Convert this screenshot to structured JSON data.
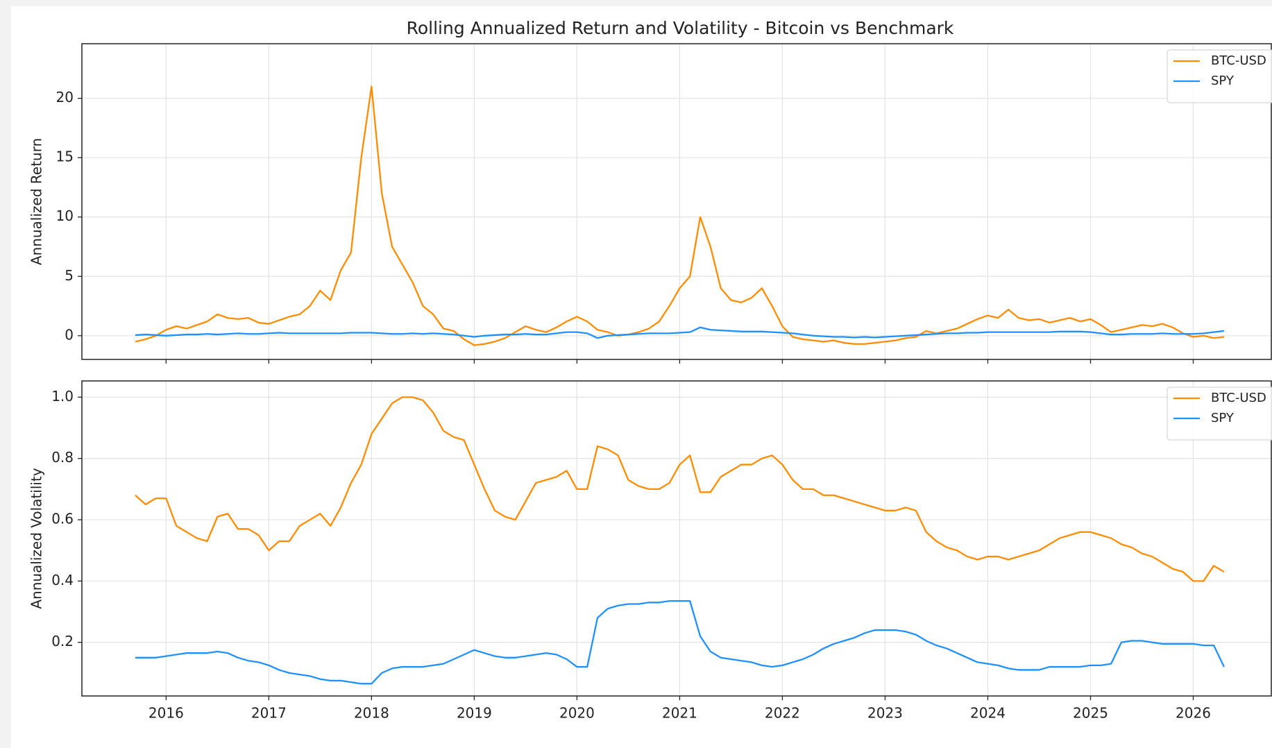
{
  "chart_data": [
    {
      "type": "line",
      "title": "Rolling Annualized Return and Volatility - Bitcoin vs Benchmark",
      "ylabel": "Annualized Return",
      "x": [
        2015.7,
        2015.8,
        2015.9,
        2016,
        2016.1,
        2016.2,
        2016.3,
        2016.4,
        2016.5,
        2016.6,
        2016.7,
        2016.8,
        2016.9,
        2017,
        2017.1,
        2017.2,
        2017.3,
        2017.4,
        2017.5,
        2017.6,
        2017.7,
        2017.8,
        2017.9,
        2018,
        2018.1,
        2018.2,
        2018.3,
        2018.4,
        2018.5,
        2018.6,
        2018.7,
        2018.8,
        2018.9,
        2019,
        2019.1,
        2019.2,
        2019.3,
        2019.4,
        2019.5,
        2019.6,
        2019.7,
        2019.8,
        2019.9,
        2020,
        2020.1,
        2020.2,
        2020.3,
        2020.4,
        2020.5,
        2020.6,
        2020.7,
        2020.8,
        2020.9,
        2021,
        2021.1,
        2021.2,
        2021.3,
        2021.4,
        2021.5,
        2021.6,
        2021.7,
        2021.8,
        2021.9,
        2022,
        2022.1,
        2022.2,
        2022.3,
        2022.4,
        2022.5,
        2022.6,
        2022.7,
        2022.8,
        2022.9,
        2023,
        2023.1,
        2023.2,
        2023.3,
        2023.4,
        2023.5,
        2023.6,
        2023.7,
        2023.8,
        2023.9,
        2024,
        2024.1,
        2024.2,
        2024.3,
        2024.4,
        2024.5,
        2024.6,
        2024.7,
        2024.8,
        2024.9,
        2025,
        2025.1,
        2025.2,
        2025.3,
        2025.4,
        2025.5,
        2025.6,
        2025.7,
        2025.8,
        2025.9,
        2026,
        2026.1,
        2026.2,
        2026.3
      ],
      "series": [
        {
          "name": "BTC-USD",
          "color": "#ff8c00",
          "values": [
            -0.5,
            -0.3,
            0.0,
            0.5,
            0.8,
            0.6,
            0.9,
            1.2,
            1.8,
            1.5,
            1.4,
            1.5,
            1.1,
            1.0,
            1.3,
            1.6,
            1.8,
            2.5,
            3.8,
            3.0,
            5.5,
            7.0,
            15.0,
            21.0,
            12.0,
            7.5,
            6.0,
            4.5,
            2.5,
            1.8,
            0.6,
            0.4,
            -0.3,
            -0.8,
            -0.7,
            -0.5,
            -0.2,
            0.3,
            0.8,
            0.5,
            0.3,
            0.7,
            1.2,
            1.6,
            1.2,
            0.5,
            0.3,
            0.0,
            0.1,
            0.3,
            0.6,
            1.2,
            2.5,
            4.0,
            5.0,
            10.0,
            7.5,
            4.0,
            3.0,
            2.8,
            3.2,
            4.0,
            2.5,
            0.8,
            -0.1,
            -0.3,
            -0.4,
            -0.5,
            -0.4,
            -0.6,
            -0.7,
            -0.7,
            -0.6,
            -0.5,
            -0.4,
            -0.2,
            -0.1,
            0.4,
            0.2,
            0.4,
            0.6,
            1.0,
            1.4,
            1.7,
            1.5,
            2.2,
            1.5,
            1.3,
            1.4,
            1.1,
            1.3,
            1.5,
            1.2,
            1.4,
            0.9,
            0.3,
            0.5,
            0.7,
            0.9,
            0.8,
            1.0,
            0.7,
            0.2,
            -0.1,
            0.0,
            -0.2,
            -0.1
          ]
        },
        {
          "name": "SPY",
          "color": "#1e90ff",
          "values": [
            0.05,
            0.1,
            0.05,
            0.0,
            0.05,
            0.1,
            0.1,
            0.15,
            0.1,
            0.15,
            0.2,
            0.15,
            0.15,
            0.2,
            0.25,
            0.2,
            0.2,
            0.2,
            0.2,
            0.2,
            0.2,
            0.25,
            0.25,
            0.25,
            0.2,
            0.15,
            0.15,
            0.2,
            0.15,
            0.2,
            0.15,
            0.1,
            0.0,
            -0.1,
            0.0,
            0.05,
            0.1,
            0.1,
            0.15,
            0.1,
            0.1,
            0.2,
            0.3,
            0.3,
            0.2,
            -0.2,
            0.0,
            0.05,
            0.1,
            0.15,
            0.2,
            0.2,
            0.2,
            0.25,
            0.3,
            0.7,
            0.5,
            0.45,
            0.4,
            0.35,
            0.35,
            0.35,
            0.3,
            0.25,
            0.2,
            0.1,
            0.0,
            -0.05,
            -0.1,
            -0.1,
            -0.15,
            -0.1,
            -0.15,
            -0.1,
            -0.05,
            0.0,
            0.05,
            0.1,
            0.15,
            0.2,
            0.2,
            0.25,
            0.25,
            0.3,
            0.3,
            0.3,
            0.3,
            0.3,
            0.3,
            0.3,
            0.35,
            0.35,
            0.35,
            0.3,
            0.2,
            0.1,
            0.1,
            0.15,
            0.15,
            0.15,
            0.2,
            0.15,
            0.15,
            0.15,
            0.2,
            0.3,
            0.4
          ]
        }
      ],
      "xlim": [
        2015.18,
        2026.76
      ],
      "xticks": [
        2016,
        2017,
        2018,
        2019,
        2020,
        2021,
        2022,
        2023,
        2024,
        2025,
        2026
      ],
      "ylim": [
        -2,
        24.6
      ],
      "yticks": [
        0,
        5,
        10,
        15,
        20
      ],
      "grid": true,
      "legend": "upper right"
    },
    {
      "type": "line",
      "ylabel": "Annualized Volatility",
      "x": [
        2015.7,
        2015.8,
        2015.9,
        2016,
        2016.1,
        2016.2,
        2016.3,
        2016.4,
        2016.5,
        2016.6,
        2016.7,
        2016.8,
        2016.9,
        2017,
        2017.1,
        2017.2,
        2017.3,
        2017.4,
        2017.5,
        2017.6,
        2017.7,
        2017.8,
        2017.9,
        2018,
        2018.1,
        2018.2,
        2018.3,
        2018.4,
        2018.5,
        2018.6,
        2018.7,
        2018.8,
        2018.9,
        2019,
        2019.1,
        2019.2,
        2019.3,
        2019.4,
        2019.5,
        2019.6,
        2019.7,
        2019.8,
        2019.9,
        2020,
        2020.1,
        2020.2,
        2020.3,
        2020.4,
        2020.5,
        2020.6,
        2020.7,
        2020.8,
        2020.9,
        2021,
        2021.1,
        2021.2,
        2021.3,
        2021.4,
        2021.5,
        2021.6,
        2021.7,
        2021.8,
        2021.9,
        2022,
        2022.1,
        2022.2,
        2022.3,
        2022.4,
        2022.5,
        2022.6,
        2022.7,
        2022.8,
        2022.9,
        2023,
        2023.1,
        2023.2,
        2023.3,
        2023.4,
        2023.5,
        2023.6,
        2023.7,
        2023.8,
        2023.9,
        2024,
        2024.1,
        2024.2,
        2024.3,
        2024.4,
        2024.5,
        2024.6,
        2024.7,
        2024.8,
        2024.9,
        2025,
        2025.1,
        2025.2,
        2025.3,
        2025.4,
        2025.5,
        2025.6,
        2025.7,
        2025.8,
        2025.9,
        2026,
        2026.1,
        2026.2,
        2026.3
      ],
      "series": [
        {
          "name": "BTC-USD",
          "color": "#ff8c00",
          "values": [
            0.68,
            0.65,
            0.67,
            0.67,
            0.58,
            0.56,
            0.54,
            0.53,
            0.61,
            0.62,
            0.57,
            0.57,
            0.55,
            0.5,
            0.53,
            0.53,
            0.58,
            0.6,
            0.62,
            0.58,
            0.64,
            0.72,
            0.78,
            0.88,
            0.93,
            0.98,
            1.0,
            1.0,
            0.99,
            0.95,
            0.89,
            0.87,
            0.86,
            0.78,
            0.7,
            0.63,
            0.61,
            0.6,
            0.66,
            0.72,
            0.73,
            0.74,
            0.76,
            0.7,
            0.7,
            0.84,
            0.83,
            0.81,
            0.73,
            0.71,
            0.7,
            0.7,
            0.72,
            0.78,
            0.81,
            0.69,
            0.69,
            0.74,
            0.76,
            0.78,
            0.78,
            0.8,
            0.81,
            0.78,
            0.73,
            0.7,
            0.7,
            0.68,
            0.68,
            0.67,
            0.66,
            0.65,
            0.64,
            0.63,
            0.63,
            0.64,
            0.63,
            0.56,
            0.53,
            0.51,
            0.5,
            0.48,
            0.47,
            0.48,
            0.48,
            0.47,
            0.48,
            0.49,
            0.5,
            0.52,
            0.54,
            0.55,
            0.56,
            0.56,
            0.55,
            0.54,
            0.52,
            0.51,
            0.49,
            0.48,
            0.46,
            0.44,
            0.43,
            0.4,
            0.4,
            0.45,
            0.43
          ]
        },
        {
          "name": "SPY",
          "color": "#1e90ff",
          "values": [
            0.15,
            0.15,
            0.15,
            0.155,
            0.16,
            0.165,
            0.165,
            0.165,
            0.17,
            0.165,
            0.15,
            0.14,
            0.135,
            0.125,
            0.11,
            0.1,
            0.095,
            0.09,
            0.08,
            0.075,
            0.075,
            0.07,
            0.065,
            0.065,
            0.1,
            0.115,
            0.12,
            0.12,
            0.12,
            0.125,
            0.13,
            0.145,
            0.16,
            0.175,
            0.165,
            0.155,
            0.15,
            0.15,
            0.155,
            0.16,
            0.165,
            0.16,
            0.145,
            0.12,
            0.12,
            0.28,
            0.31,
            0.32,
            0.325,
            0.325,
            0.33,
            0.33,
            0.335,
            0.335,
            0.335,
            0.22,
            0.17,
            0.15,
            0.145,
            0.14,
            0.135,
            0.125,
            0.12,
            0.125,
            0.135,
            0.145,
            0.16,
            0.18,
            0.195,
            0.205,
            0.215,
            0.23,
            0.24,
            0.24,
            0.24,
            0.235,
            0.225,
            0.205,
            0.19,
            0.18,
            0.165,
            0.15,
            0.135,
            0.13,
            0.125,
            0.115,
            0.11,
            0.11,
            0.11,
            0.12,
            0.12,
            0.12,
            0.12,
            0.125,
            0.125,
            0.13,
            0.2,
            0.205,
            0.205,
            0.2,
            0.195,
            0.195,
            0.195,
            0.195,
            0.19,
            0.19,
            0.12
          ]
        }
      ],
      "xlim": [
        2015.18,
        2026.76
      ],
      "xticks": [
        2016,
        2017,
        2018,
        2019,
        2020,
        2021,
        2022,
        2023,
        2024,
        2025,
        2026
      ],
      "ylim": [
        0.025,
        1.053
      ],
      "yticks": [
        0.2,
        0.4,
        0.6,
        0.8,
        {
          "value": 1,
          "label": "1.0"
        }
      ],
      "grid": true,
      "legend": "upper right"
    }
  ]
}
